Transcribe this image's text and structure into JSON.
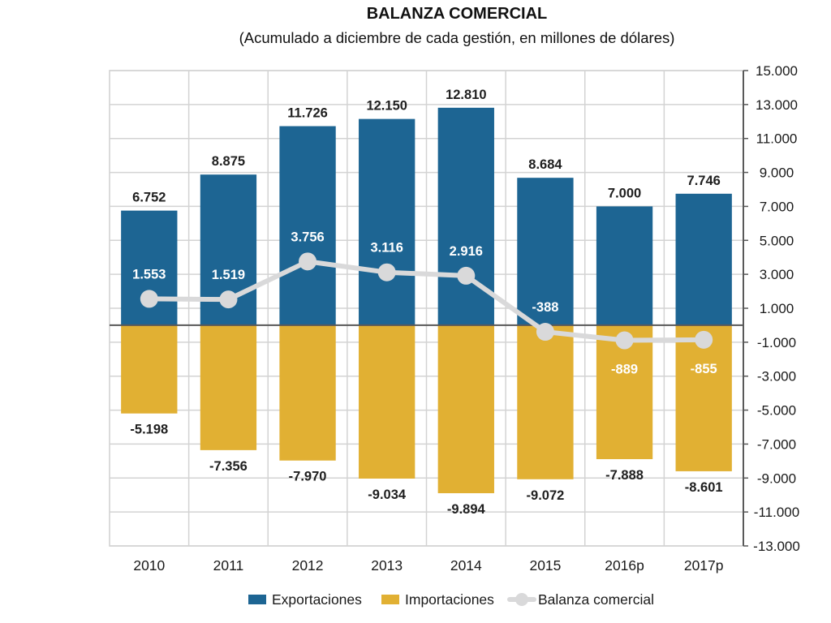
{
  "chart_data": {
    "type": "bar",
    "title": "BALANZA COMERCIAL",
    "subtitle": "(Acumulado a diciembre de cada gestión, en millones de dólares)",
    "categories": [
      "2010",
      "2011",
      "2012",
      "2013",
      "2014",
      "2015",
      "2016p",
      "2017p"
    ],
    "series": [
      {
        "name": "Exportaciones",
        "type": "bar",
        "color": "#1d6593",
        "values": [
          6752,
          8875,
          11726,
          12150,
          12810,
          8684,
          7000,
          7746
        ],
        "labels": [
          "6.752",
          "8.875",
          "11.726",
          "12.150",
          "12.810",
          "8.684",
          "7.000",
          "7.746"
        ]
      },
      {
        "name": "Importaciones",
        "type": "bar",
        "color": "#e1b033",
        "values": [
          -5198,
          -7356,
          -7970,
          -9034,
          -9894,
          -9072,
          -7888,
          -8601
        ],
        "labels": [
          "-5.198",
          "-7.356",
          "-7.970",
          "-9.034",
          "-9.894",
          "-9.072",
          "-7.888",
          "-8.601"
        ]
      },
      {
        "name": "Balanza comercial",
        "type": "line",
        "color": "#d9d9da",
        "values": [
          1553,
          1519,
          3756,
          3116,
          2916,
          -388,
          -889,
          -855
        ],
        "labels": [
          "1.553",
          "1.519",
          "3.756",
          "3.116",
          "2.916",
          "-388",
          "-889",
          "-855"
        ]
      }
    ],
    "y_axis": {
      "position": "right",
      "ylim": [
        -13000,
        15000
      ],
      "ticks": [
        15000,
        13000,
        11000,
        9000,
        7000,
        5000,
        3000,
        1000,
        -1000,
        -3000,
        -5000,
        -7000,
        -9000,
        -11000,
        -13000
      ],
      "tick_labels": [
        "15.000",
        "13.000",
        "11.000",
        "9.000",
        "7.000",
        "5.000",
        "3.000",
        "1.000",
        "-1.000",
        "-3.000",
        "-5.000",
        "-7.000",
        "-9.000",
        "-11.000",
        "-13.000"
      ]
    },
    "grid": true,
    "legend": {
      "position": "bottom"
    }
  }
}
